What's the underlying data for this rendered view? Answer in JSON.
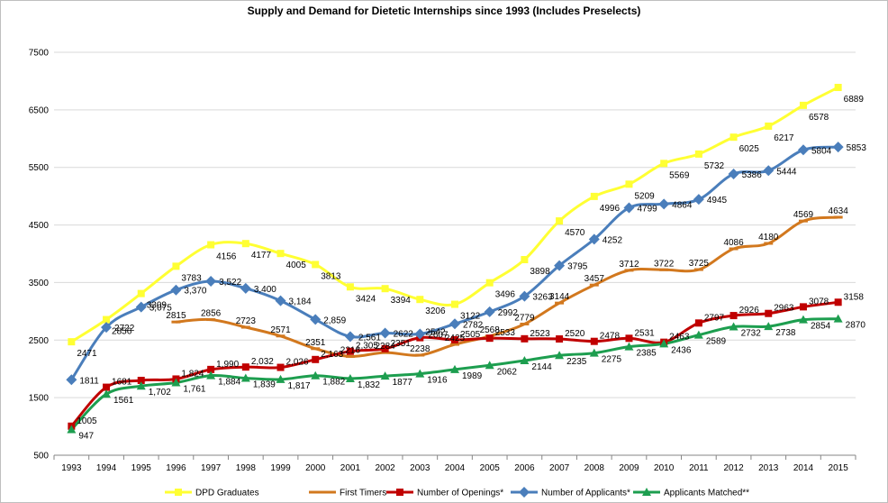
{
  "chart_data": {
    "type": "line",
    "title": "Supply and Demand for Dietetic Internships since 1993 (Includes Preselects)",
    "xlabel": "",
    "ylabel": "",
    "ylim": [
      500,
      7500
    ],
    "yticks": [
      500,
      1500,
      2500,
      3500,
      4500,
      5500,
      6500,
      7500
    ],
    "grid": true,
    "legend": "bottom",
    "categories": [
      "1993",
      "1994",
      "1995",
      "1996",
      "1997",
      "1998",
      "1999",
      "2000",
      "2001",
      "2002",
      "2003",
      "2004",
      "2005",
      "2006",
      "2007",
      "2008",
      "2009",
      "2010",
      "2011",
      "2012",
      "2013",
      "2014",
      "2015"
    ],
    "series": [
      {
        "name": "DPD Graduates",
        "color": "#ffff33",
        "marker": "square",
        "values": [
          2471,
          2856,
          3309,
          3783,
          4156,
          4177,
          4005,
          3813,
          3424,
          3394,
          3206,
          3122,
          3496,
          3898,
          4570,
          4996,
          5209,
          5569,
          5732,
          6025,
          6217,
          6578,
          6889
        ],
        "labels": [
          "2471",
          "2856",
          "3309",
          "3783",
          "4156",
          "4177",
          "4005",
          "3813",
          "3424",
          "3394",
          "3206",
          "3122",
          "3496",
          "3898",
          "4570",
          "4996",
          "5209",
          "5569",
          "5732",
          "6025",
          "6217",
          "6578",
          "6889"
        ]
      },
      {
        "name": "First Timers",
        "color": "#d2781e",
        "marker": "dash",
        "values": [
          null,
          null,
          null,
          2815,
          2856,
          2723,
          2571,
          2351,
          2216,
          2284,
          2238,
          2425,
          2568,
          2779,
          3144,
          3457,
          3712,
          3722,
          3725,
          4086,
          4180,
          4569,
          4634
        ],
        "labels": [
          "",
          "",
          "",
          "2815",
          "2856",
          "2723",
          "2571",
          "2351",
          "2216",
          "2284",
          "2238",
          "2425",
          "2568",
          "2779",
          "3144",
          "3457",
          "3712",
          "3722",
          "3725",
          "4086",
          "4180",
          "4569",
          "4634"
        ]
      },
      {
        "name": "Number of Openings*",
        "color": "#c00000",
        "marker": "square",
        "values": [
          1005,
          1681,
          1800,
          1824,
          1990,
          2032,
          2026,
          2163,
          2305,
          2351,
          2542,
          2505,
          2533,
          2523,
          2520,
          2478,
          2531,
          2463,
          2797,
          2926,
          2963,
          3078,
          3158
        ],
        "labels": [
          "1005",
          "1681",
          "",
          "1,824",
          "1,990",
          "2,032",
          "2,026",
          "2,163",
          "2,305",
          "2351",
          "2542",
          "2505",
          "2533",
          "2523",
          "2520",
          "2478",
          "2531",
          "2463",
          "2797",
          "2926",
          "2963",
          "3078",
          "3158"
        ]
      },
      {
        "name": "Number of Applicants*",
        "color": "#4a7ebb",
        "marker": "diamond",
        "values": [
          1811,
          2722,
          3075,
          3370,
          3522,
          3400,
          3184,
          2859,
          2561,
          2622,
          2607,
          2782,
          2992,
          3263,
          3795,
          4252,
          4799,
          4864,
          4945,
          5386,
          5444,
          5804,
          5853
        ],
        "labels": [
          "1811",
          "2722",
          "3,075",
          "3,370",
          "3,522",
          "3,400",
          "3,184",
          "2,859",
          "2,561",
          "2622",
          "2607",
          "2782",
          "2992",
          "3263",
          "3795",
          "4252",
          "4799",
          "4864",
          "4945",
          "5386",
          "5444",
          "5804",
          "5853"
        ]
      },
      {
        "name": "Applicants Matched**",
        "color": "#1d9e4f",
        "marker": "triangle",
        "values": [
          947,
          1561,
          1702,
          1761,
          1884,
          1839,
          1817,
          1882,
          1832,
          1877,
          1916,
          1989,
          2062,
          2144,
          2235,
          2275,
          2385,
          2436,
          2589,
          2732,
          2738,
          2854,
          2870
        ],
        "labels": [
          "947",
          "1561",
          "1,702",
          "1,761",
          "1,884",
          "1,839",
          "1,817",
          "1,882",
          "1,832",
          "1877",
          "1916",
          "1989",
          "2062",
          "2144",
          "2235",
          "2275",
          "2385",
          "2436",
          "2589",
          "2732",
          "2738",
          "2854",
          "2870"
        ]
      }
    ]
  }
}
